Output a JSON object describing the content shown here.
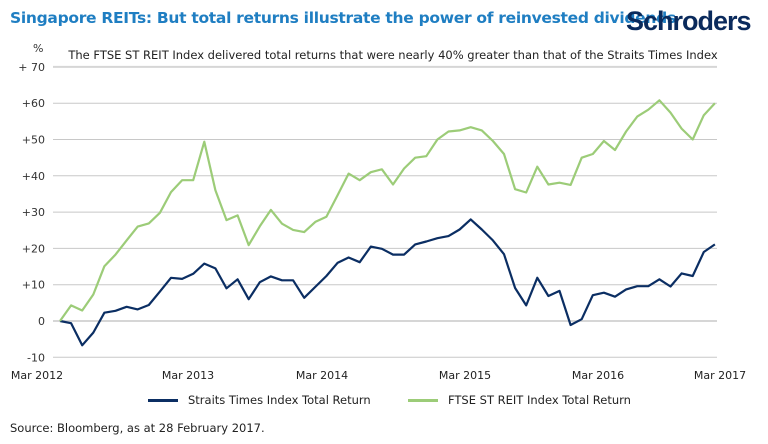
{
  "header": {
    "title": "Singapore REITs: But total returns illustrate the power of reinvested dividends",
    "logo": "Schroders"
  },
  "chart_data": {
    "type": "line",
    "title": "Singapore REITs: But total returns illustrate the power of reinvested dividends",
    "subtitle": "The FTSE ST REIT Index delivered total returns that were nearly 40% greater than that of the Straits Times Index",
    "ylabel": "%",
    "ylim": [
      -10,
      70
    ],
    "yticks": [
      -10,
      0,
      10,
      20,
      30,
      40,
      50,
      60,
      70
    ],
    "ytick_labels": [
      "-10",
      "0",
      "+10",
      "+20",
      "+30",
      "+40",
      "+50",
      "+60",
      "+ 70"
    ],
    "xtick_labels": [
      "Mar 2012",
      "Mar 2013",
      "Mar 2014",
      "Mar 2015",
      "Mar 2016",
      "Mar 2017"
    ],
    "x_frequency": "monthly, Mar 2012 to Feb 2017",
    "grid": true,
    "legend_position": "bottom",
    "series": [
      {
        "name": "Straits Times Index Total Return",
        "color": "#0b2e63",
        "values": [
          0,
          -0.6,
          -6.7,
          -3.2,
          2.3,
          2.8,
          3.9,
          3.2,
          4.4,
          8.1,
          11.9,
          11.6,
          13,
          15.8,
          14.5,
          9,
          11.5,
          6,
          10.7,
          12.3,
          11.2,
          11.2,
          6.4,
          9.4,
          12.4,
          16,
          17.5,
          16.2,
          20.5,
          19.9,
          18.3,
          18.3,
          21.1,
          21.9,
          22.8,
          23.4,
          25.2,
          28,
          25.2,
          22.2,
          18.4,
          9.1,
          4.3,
          11.9,
          6.9,
          8.3,
          -1.1,
          0.5,
          7.1,
          7.8,
          6.7,
          8.7,
          9.6,
          9.6,
          11.5,
          9.5,
          13.1,
          12.4,
          19,
          21.1
        ]
      },
      {
        "name": "FTSE ST REIT Index Total Return",
        "color": "#9ccc78",
        "values": [
          0,
          4.3,
          2.9,
          7.3,
          15.1,
          18.3,
          22.2,
          26,
          26.9,
          29.8,
          35.5,
          38.8,
          38.8,
          49.4,
          36,
          27.8,
          29.1,
          20.9,
          26.1,
          30.6,
          26.8,
          25.1,
          24.5,
          27.3,
          28.7,
          34.6,
          40.6,
          38.8,
          41,
          41.8,
          37.6,
          42,
          45,
          45.4,
          50,
          52.2,
          52.5,
          53.4,
          52.5,
          49.6,
          46,
          36.3,
          35.4,
          42.5,
          37.6,
          38.1,
          37.5,
          45,
          46,
          49.6,
          47.1,
          52.2,
          56.3,
          58.2,
          60.8,
          57.4,
          53,
          50,
          56.7,
          60
        ]
      }
    ]
  },
  "footer": {
    "source": "Source: Bloomberg, as at 28 February 2017."
  }
}
